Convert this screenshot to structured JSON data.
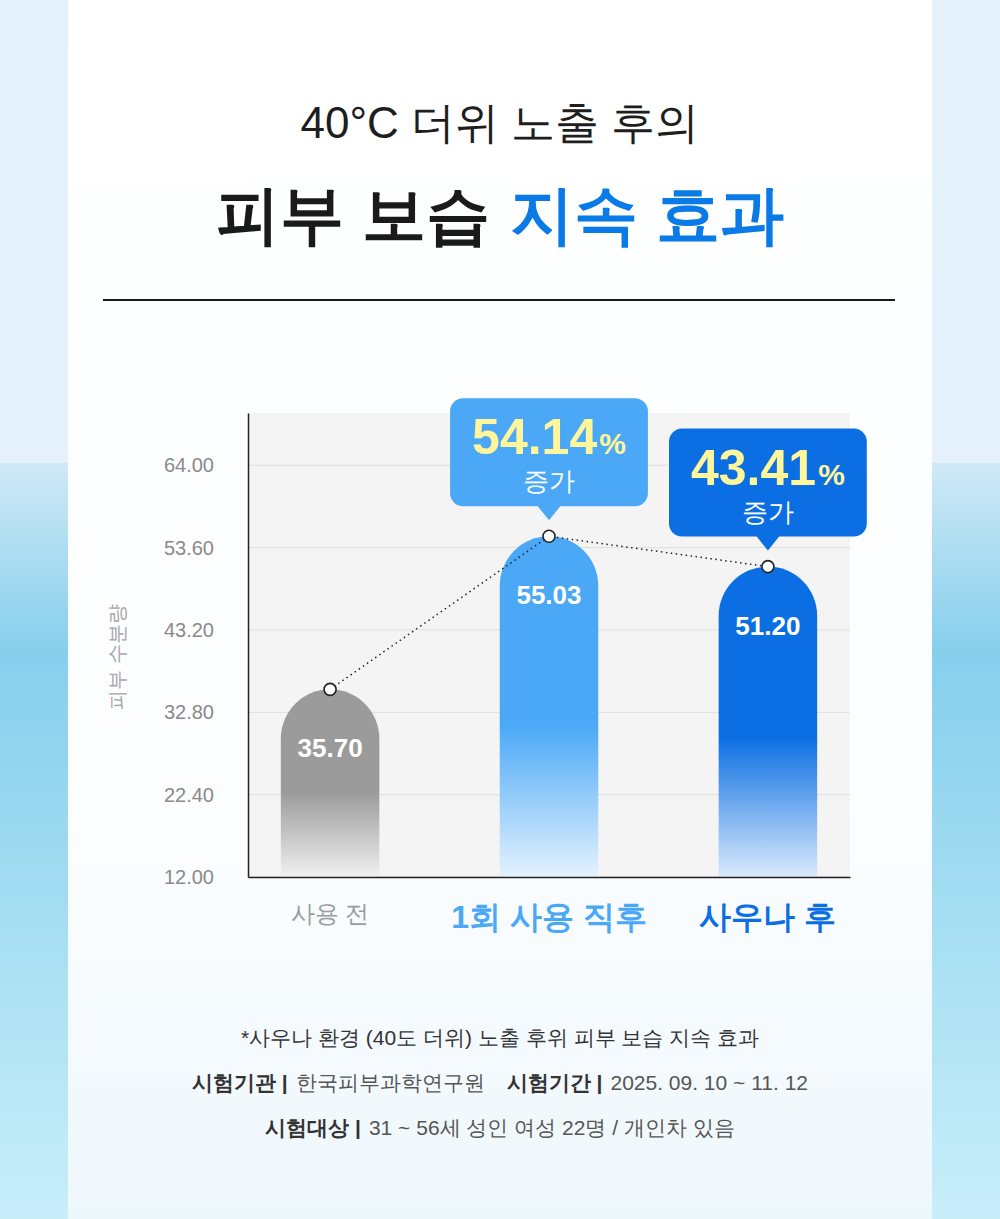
{
  "chart_data": {
    "type": "bar",
    "title": "40°C 더위 노출 후의",
    "subtitle": [
      "피부 보습",
      "지속 효과"
    ],
    "ylabel": "피부 수분량",
    "categories": [
      "사용 전",
      "1회 사용 직후",
      "사우나 후"
    ],
    "values": [
      35.7,
      55.03,
      51.2
    ],
    "value_labels": [
      "35.70",
      "55.03",
      "51.20"
    ],
    "colors": [
      "#9b9b9b",
      "#4aa8f6",
      "#0b6fe3"
    ],
    "ylim": [
      12,
      70.6
    ],
    "yticks": [
      {
        "value": 12,
        "label": "12.00"
      },
      {
        "value": 22.4,
        "label": "22.40"
      },
      {
        "value": 32.8,
        "label": "32.80"
      },
      {
        "value": 43.2,
        "label": "43.20"
      },
      {
        "value": 53.6,
        "label": "53.60"
      },
      {
        "value": 64,
        "label": "64.00"
      }
    ],
    "grid": true,
    "data_labels": true,
    "annotations": [
      null,
      {
        "value": 54.14,
        "unit": "%",
        "text": "증가"
      },
      {
        "value": 43.41,
        "unit": "%",
        "text": "증가"
      }
    ],
    "footnote": "*사우나 환경 (40도 더위) 노출 후위 피부 보습 지속 효과",
    "notes": [
      [
        {
          "label": "시험기관 |",
          "text": "한국피부과학연구원"
        },
        {
          "label": "시험기간 |",
          "text": "2025. 09. 10 ~ 11. 12"
        }
      ],
      [
        {
          "label": "시험대상 |",
          "text": "31 ~ 56세 성인 여성 22명 / 개인차 있음"
        }
      ]
    ]
  }
}
